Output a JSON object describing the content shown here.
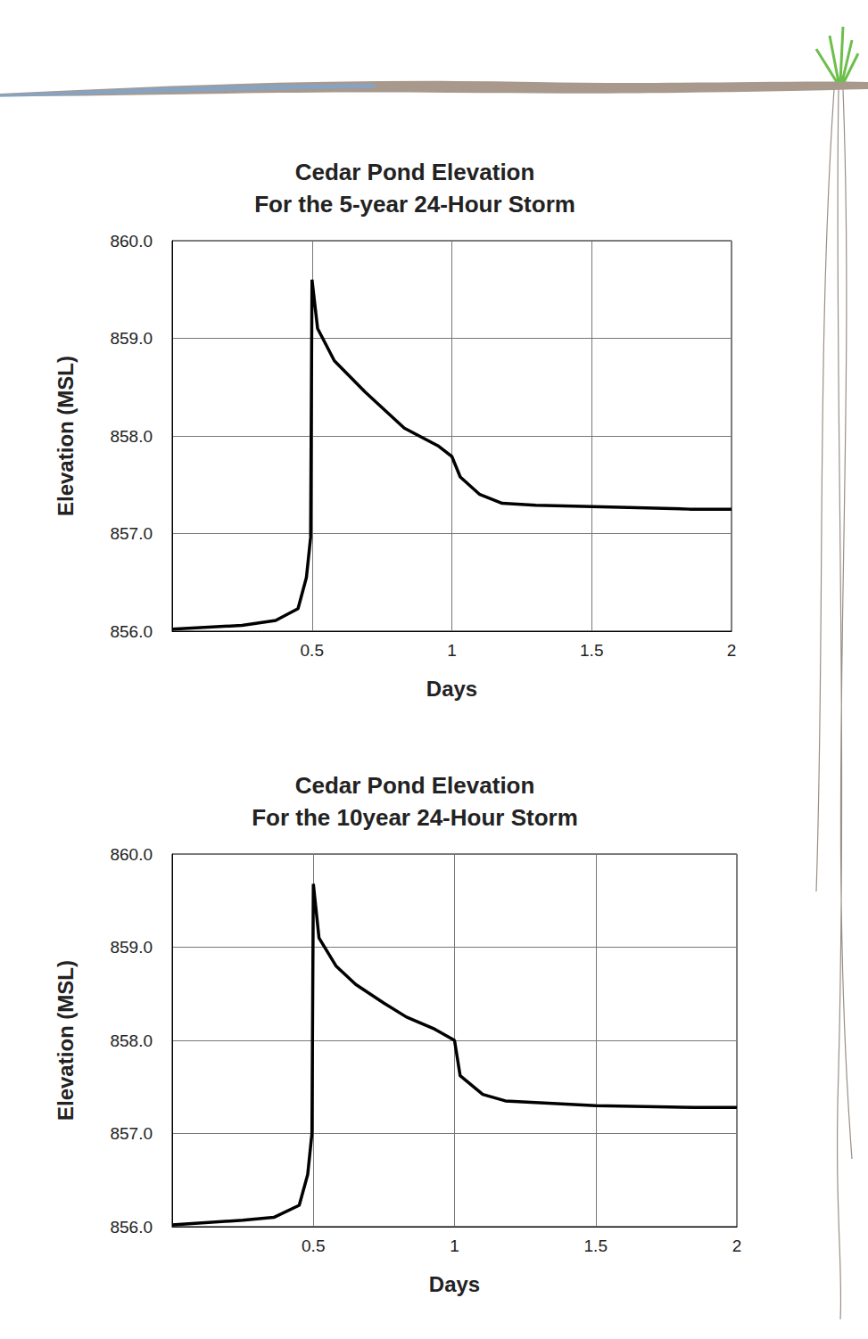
{
  "chart_data": [
    {
      "type": "line",
      "title": "Cedar Pond Elevation\nFor the 5-year 24-Hour Storm",
      "x_label": "Days",
      "y_label": "Elevation (MSL)",
      "x": [
        0,
        0.25,
        0.37,
        0.45,
        0.48,
        0.495,
        0.5,
        0.52,
        0.58,
        0.69,
        0.83,
        0.95,
        1.0,
        1.03,
        1.1,
        1.18,
        1.3,
        1.6,
        1.85,
        2.0
      ],
      "values": [
        856.02,
        856.06,
        856.11,
        856.23,
        856.55,
        856.96,
        859.6,
        859.1,
        858.77,
        858.45,
        858.08,
        857.9,
        857.79,
        857.58,
        857.4,
        857.31,
        857.29,
        857.27,
        857.25,
        857.25
      ],
      "color": "#000000",
      "xlim": [
        0,
        2
      ],
      "xticks": [
        0.5,
        1,
        1.5,
        2
      ],
      "ylim": [
        856,
        860
      ],
      "yticks": [
        {
          "value": 856,
          "label": "856.0"
        },
        {
          "value": 857,
          "label": "857.0"
        },
        {
          "value": 858,
          "label": "858.0"
        },
        {
          "value": 859,
          "label": "859.0"
        },
        {
          "value": 860,
          "label": "860.0"
        }
      ],
      "grid": true
    },
    {
      "type": "line",
      "title": "Cedar Pond Elevation\nFor the 10year 24-Hour Storm",
      "x_label": "Days",
      "y_label": "Elevation (MSL)",
      "x": [
        0,
        0.25,
        0.36,
        0.45,
        0.48,
        0.495,
        0.5,
        0.52,
        0.58,
        0.65,
        0.75,
        0.83,
        0.93,
        1.0,
        1.02,
        1.1,
        1.18,
        1.5,
        1.85,
        2.0
      ],
      "values": [
        856.02,
        856.07,
        856.1,
        856.23,
        856.56,
        857.0,
        859.68,
        859.1,
        858.8,
        858.6,
        858.4,
        858.25,
        858.12,
        858.0,
        857.62,
        857.42,
        857.35,
        857.3,
        857.28,
        857.28
      ],
      "color": "#000000",
      "xlim": [
        0,
        2
      ],
      "xticks": [
        0.5,
        1,
        1.5,
        2
      ],
      "ylim": [
        856,
        860
      ],
      "yticks": [
        {
          "value": 856,
          "label": "856.0"
        },
        {
          "value": 857,
          "label": "857.0"
        },
        {
          "value": 858,
          "label": "858.0"
        },
        {
          "value": 859,
          "label": "859.0"
        },
        {
          "value": 860,
          "label": "860.0"
        }
      ],
      "grid": true
    }
  ]
}
